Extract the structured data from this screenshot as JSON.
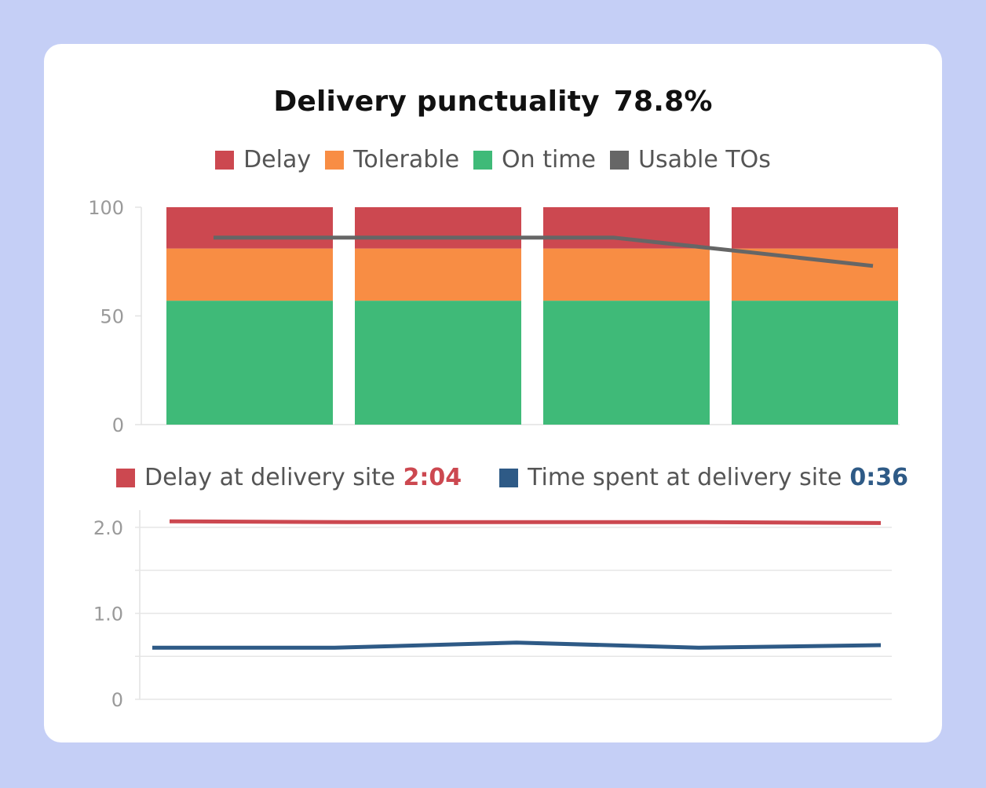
{
  "title": "Delivery punctuality",
  "title_value": "78.8%",
  "colors": {
    "delay": "#cc4850",
    "tolerable": "#f88d44",
    "on_time": "#3fba78",
    "usable": "#666666",
    "time_spent": "#2e5a86",
    "background": "#c5cff6",
    "card": "#ffffff"
  },
  "chart_data": [
    {
      "type": "bar",
      "stacked": true,
      "categories": [
        "",
        "",
        "",
        ""
      ],
      "series": [
        {
          "name": "On time",
          "values": [
            57,
            57,
            57,
            57
          ]
        },
        {
          "name": "Tolerable",
          "values": [
            24,
            24,
            24,
            24
          ]
        },
        {
          "name": "Delay",
          "values": [
            19,
            19,
            19,
            19
          ]
        }
      ],
      "overlay_line": {
        "name": "Usable TOs",
        "x": [
          0.25,
          1,
          2,
          2.375,
          3.125,
          3.75
        ],
        "values": [
          86,
          86,
          86,
          86,
          79,
          73
        ]
      },
      "ylim": [
        0,
        100
      ],
      "yticks": [
        0,
        50,
        100
      ],
      "legend": [
        "Delay",
        "Tolerable",
        "On time",
        "Usable TOs"
      ],
      "legend_position": "top-center",
      "grid": false
    },
    {
      "type": "line",
      "x": [
        0,
        1,
        2,
        3,
        4
      ],
      "series": [
        {
          "name": "Delay at delivery site",
          "summary": "2:04",
          "values": [
            2.07,
            2.06,
            2.06,
            2.06,
            2.05
          ]
        },
        {
          "name": "Time spent at delivery site",
          "summary": "0:36",
          "values": [
            0.6,
            0.6,
            0.66,
            0.6,
            0.63
          ]
        }
      ],
      "ylim": [
        0,
        2.2
      ],
      "yticks": [
        0,
        1.0,
        2.0
      ],
      "ytick_labels": [
        "0",
        "1.0",
        "2.0"
      ],
      "legend_position": "top-left",
      "grid": true
    }
  ]
}
